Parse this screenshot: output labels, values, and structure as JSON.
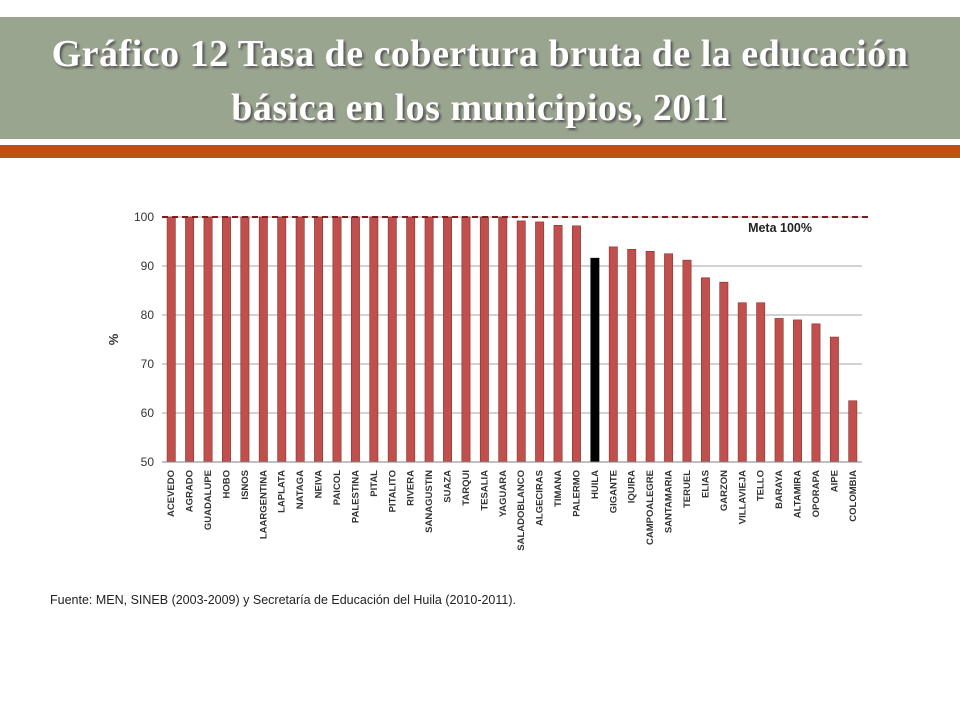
{
  "header": {
    "title_line1": "Gráfico 12 Tasa de cobertura bruta de la educación",
    "title_line2": "básica en los municipios, 2011"
  },
  "colors": {
    "band": "#9aa58f",
    "accent": "#c05116",
    "bar": "#c0504d",
    "highlight": "#000000"
  },
  "chart_data": {
    "type": "bar",
    "ylabel": "%",
    "ylim": [
      50,
      100
    ],
    "yticks": [
      50,
      60,
      70,
      80,
      90,
      100
    ],
    "grid": true,
    "reference_line": {
      "value": 100,
      "label": "Meta 100%"
    },
    "highlight": "HUILA",
    "categories": [
      "ACEVEDO",
      "AGRADO",
      "GUADALUPE",
      "HOBO",
      "ISNOS",
      "LAARGENTINA",
      "LAPLATA",
      "NATAGA",
      "NEIVA",
      "PAICOL",
      "PALESTINA",
      "PITAL",
      "PITALITO",
      "RIVERA",
      "SANAGUSTIN",
      "SUAZA",
      "TARQUI",
      "TESALIA",
      "YAGUARA",
      "SALADOBLANCO",
      "ALGECIRAS",
      "TIMANA",
      "PALERMO",
      "HUILA",
      "GIGANTE",
      "IQUIRA",
      "CAMPOALEGRE",
      "SANTAMARIA",
      "TERUEL",
      "ELIAS",
      "GARZON",
      "VILLAVIEJA",
      "TELLO",
      "BARAYA",
      "ALTAMIRA",
      "OPORAPA",
      "AIPE",
      "COLOMBIA"
    ],
    "values": [
      100,
      100,
      100,
      100,
      100,
      100,
      100,
      100,
      100,
      100,
      100,
      100,
      100,
      100,
      100,
      100,
      100,
      100,
      100,
      99.2,
      99,
      98.3,
      98.2,
      91.6,
      93.9,
      93.4,
      93,
      92.5,
      91.2,
      87.6,
      86.7,
      82.5,
      82.5,
      79.3,
      79,
      78.2,
      75.5,
      62.5
    ]
  },
  "source": "Fuente: MEN, SINEB (2003-2009) y Secretaría de Educación del Huila (2010-2011)."
}
